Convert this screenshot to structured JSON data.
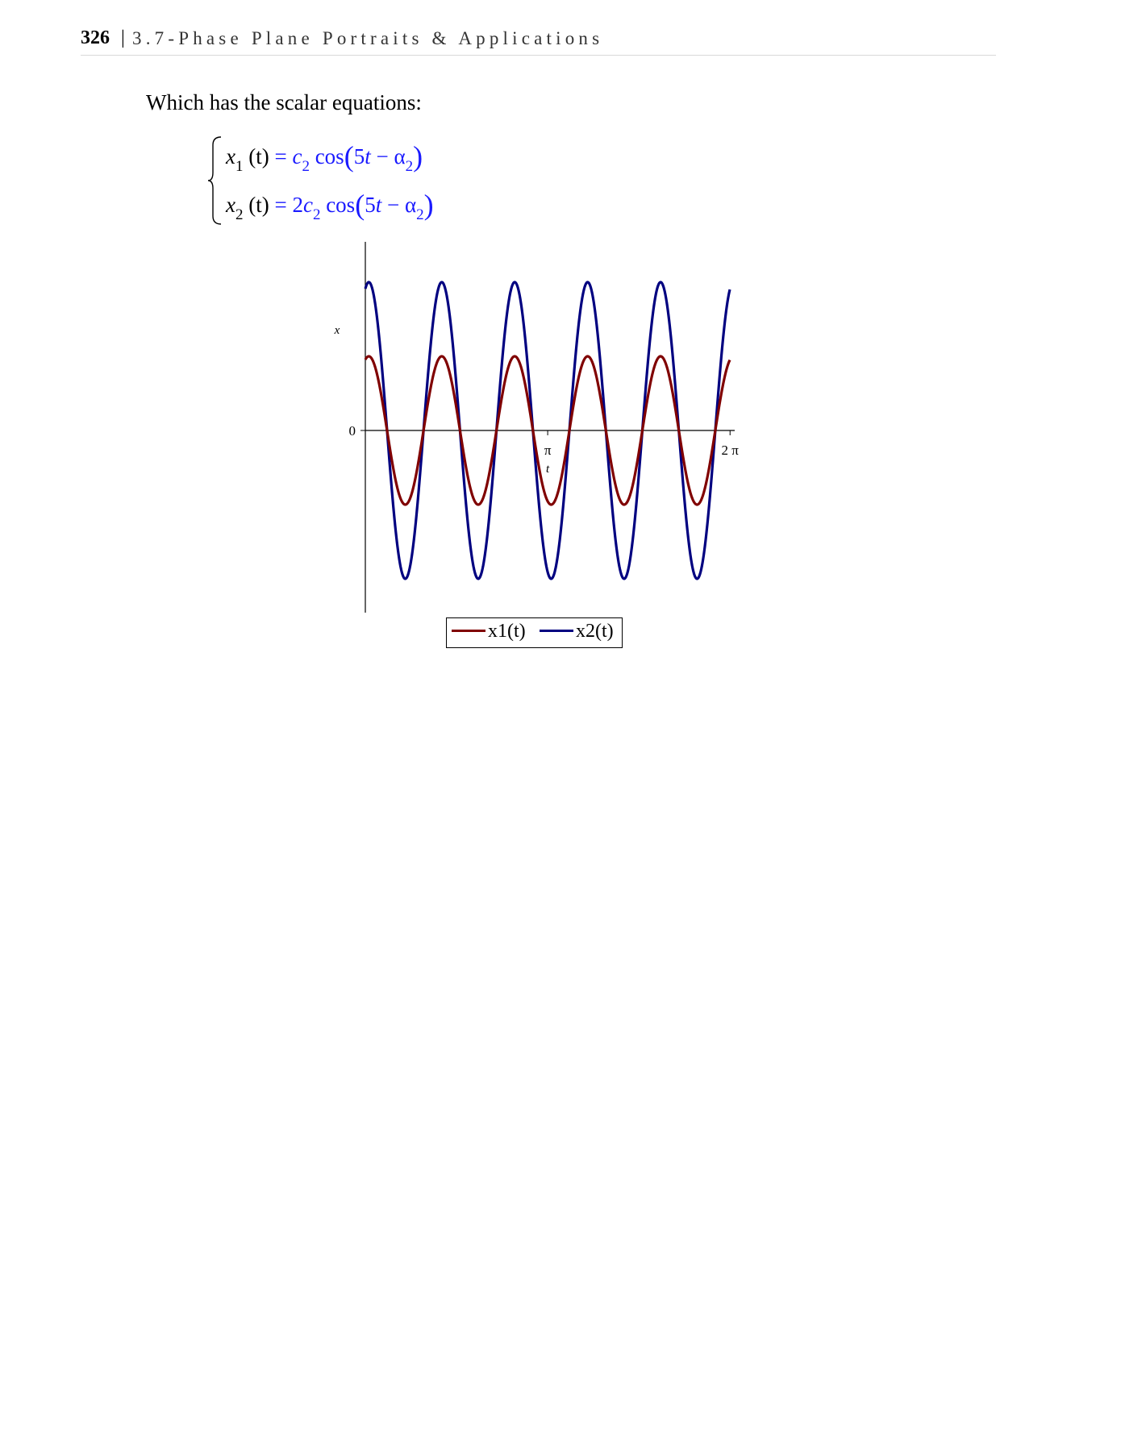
{
  "running_head": {
    "page_number": "326",
    "separator": "|",
    "title": "3.7-Phase Plane Portraits & Applications"
  },
  "intro_text": "Which has the scalar equations:",
  "equations": [
    {
      "lhs_var": "x",
      "lhs_sub": "1",
      "lhs_arg": "(t)",
      "rhs_coef": "",
      "rhs_c": "c",
      "rhs_c_sub": "2",
      "rhs_fn": "cos",
      "rhs_arg_a": "5",
      "rhs_arg_t": "t",
      "rhs_minus": "−",
      "rhs_alpha": "α",
      "rhs_alpha_sub": "2"
    },
    {
      "lhs_var": "x",
      "lhs_sub": "2",
      "lhs_arg": "(t)",
      "rhs_coef": "2",
      "rhs_c": "c",
      "rhs_c_sub": "2",
      "rhs_fn": "cos",
      "rhs_arg_a": "5",
      "rhs_arg_t": "t",
      "rhs_minus": "−",
      "rhs_alpha": "α",
      "rhs_alpha_sub": "2"
    }
  ],
  "chart_data": {
    "type": "line",
    "xlabel": "t",
    "ylabel": "x",
    "x_ticks": [
      {
        "value": 3.14159,
        "label": "π"
      },
      {
        "value": 6.28319,
        "label": "2 π"
      }
    ],
    "y_ticks": [
      {
        "value": 0,
        "label": "0"
      }
    ],
    "xlim": [
      0,
      6.28
    ],
    "ylim": [
      -2.4,
      2.6
    ],
    "grid": false,
    "legend_position": "bottom",
    "series": [
      {
        "name": "x1(t)",
        "color": "#800000",
        "amplitude": 1.0,
        "frequency": 5,
        "phase": 0.3
      },
      {
        "name": "x2(t)",
        "color": "#000080",
        "amplitude": 2.0,
        "frequency": 5,
        "phase": 0.3
      }
    ]
  }
}
